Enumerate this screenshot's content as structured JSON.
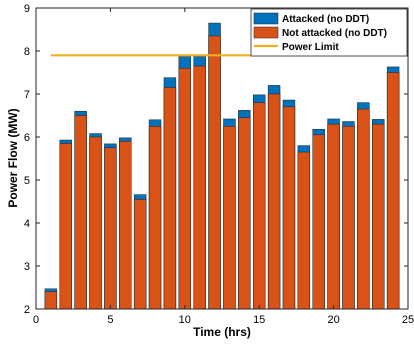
{
  "chart_data": {
    "type": "bar",
    "x": [
      1,
      2,
      3,
      4,
      5,
      6,
      7,
      8,
      9,
      10,
      11,
      12,
      13,
      14,
      15,
      16,
      17,
      18,
      19,
      20,
      21,
      22,
      23,
      24
    ],
    "series": [
      {
        "name": "Not attacked (no DDT)",
        "color": "#d95319",
        "values": [
          2.4,
          5.85,
          6.5,
          6.0,
          5.75,
          5.9,
          4.55,
          6.25,
          7.15,
          7.6,
          7.65,
          8.35,
          6.25,
          6.45,
          6.8,
          7.0,
          6.7,
          5.65,
          6.05,
          6.3,
          6.25,
          6.65,
          6.3,
          7.5
        ]
      },
      {
        "name": "Attacked (no DDT)",
        "color": "#0072bd",
        "values": [
          2.47,
          5.93,
          6.6,
          6.08,
          5.84,
          5.98,
          4.66,
          6.4,
          7.38,
          7.87,
          7.87,
          8.65,
          6.42,
          6.62,
          6.98,
          7.2,
          6.86,
          5.8,
          6.18,
          6.42,
          6.36,
          6.8,
          6.41,
          7.63
        ]
      }
    ],
    "power_limit": {
      "name": "Power Limit",
      "value": 7.9,
      "x_range": [
        1,
        25
      ],
      "color": "#edb120"
    },
    "xlabel": "Time (hrs)",
    "ylabel": "Power Flow (MW)",
    "xlim": [
      0,
      25
    ],
    "ylim": [
      2,
      9
    ],
    "xticks": [
      0,
      5,
      10,
      15,
      20,
      25
    ],
    "yticks": [
      2,
      3,
      4,
      5,
      6,
      7,
      8,
      9
    ],
    "legend_position": "top-right",
    "grid": false
  }
}
